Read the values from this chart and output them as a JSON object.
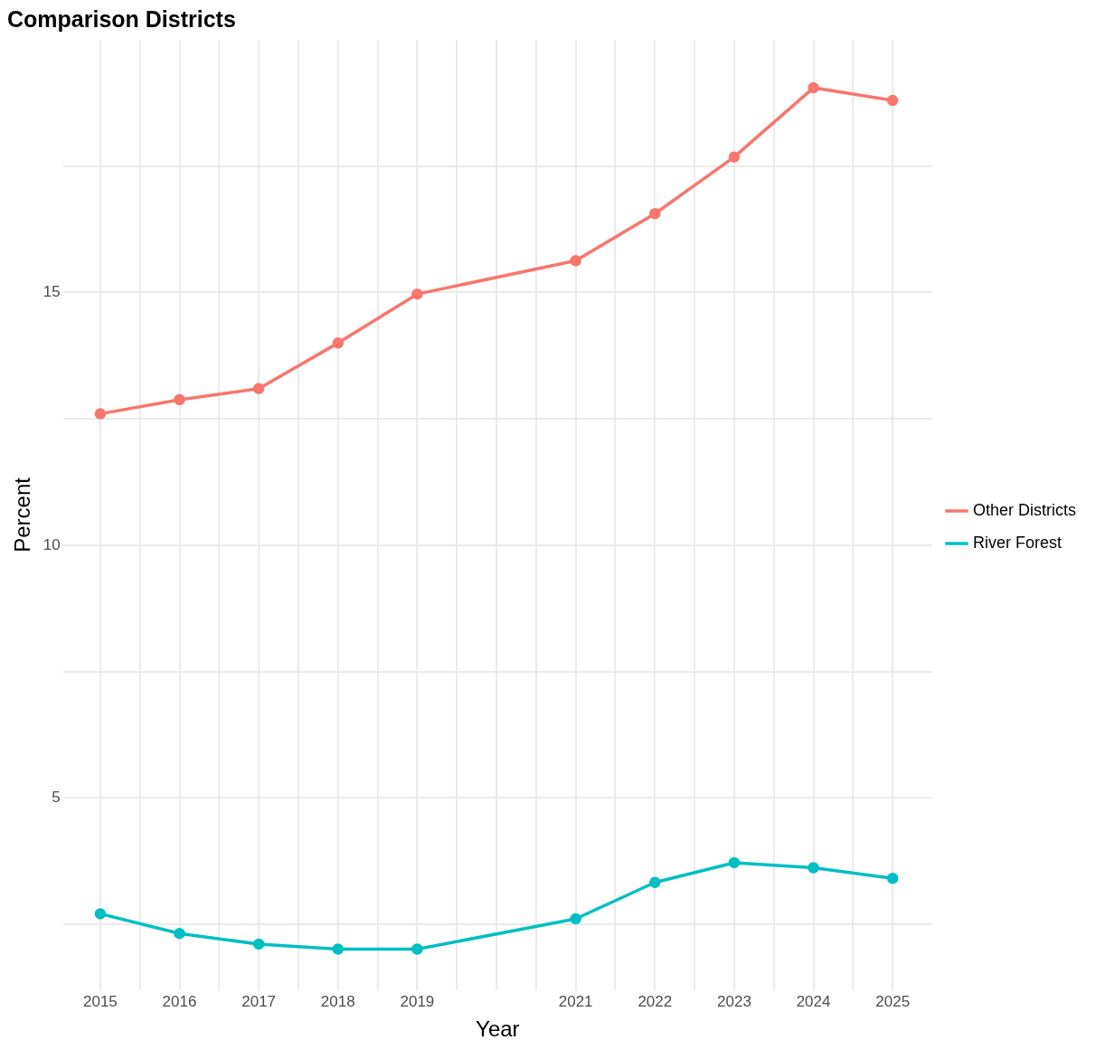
{
  "chart_data": {
    "type": "line",
    "title": "Comparison Districts",
    "xlabel": "Year",
    "ylabel": "Percent",
    "x": [
      2015,
      2016,
      2017,
      2018,
      2019,
      2021,
      2022,
      2023,
      2024,
      2025
    ],
    "series": [
      {
        "name": "Other Districts",
        "color": "#f8766d",
        "values": [
          12.6,
          12.88,
          13.1,
          14.0,
          14.97,
          15.63,
          16.56,
          17.68,
          19.05,
          18.8
        ]
      },
      {
        "name": "River Forest",
        "color": "#00bfc4",
        "values": [
          2.71,
          2.32,
          2.11,
          2.01,
          2.01,
          2.61,
          3.33,
          3.72,
          3.62,
          3.41
        ]
      }
    ],
    "xlim": [
      2014.53,
      2025.5
    ],
    "xticks": [
      2015,
      {
        "value": 2015.5,
        "label": null
      },
      2016,
      {
        "value": 2016.5,
        "label": null
      },
      2017,
      {
        "value": 2017.5,
        "label": null
      },
      2018,
      {
        "value": 2018.5,
        "label": null
      },
      2019,
      {
        "value": 2019.5,
        "label": null
      },
      {
        "value": 2020,
        "label": null
      },
      {
        "value": 2020.5,
        "label": null
      },
      2021,
      {
        "value": 2021.5,
        "label": null
      },
      2022,
      {
        "value": 2022.5,
        "label": null
      },
      2023,
      {
        "value": 2023.5,
        "label": null
      },
      2024,
      {
        "value": 2024.5,
        "label": null
      },
      2025
    ],
    "ylim": [
      1.2,
      20
    ],
    "yticks": [
      {
        "value": 2.5,
        "label": null
      },
      5,
      {
        "value": 7.5,
        "label": null
      },
      10,
      {
        "value": 12.5,
        "label": null
      },
      15,
      {
        "value": 17.5,
        "label": null
      }
    ],
    "grid": true,
    "legend": "right",
    "marker": "circle",
    "line_style": "solid"
  }
}
